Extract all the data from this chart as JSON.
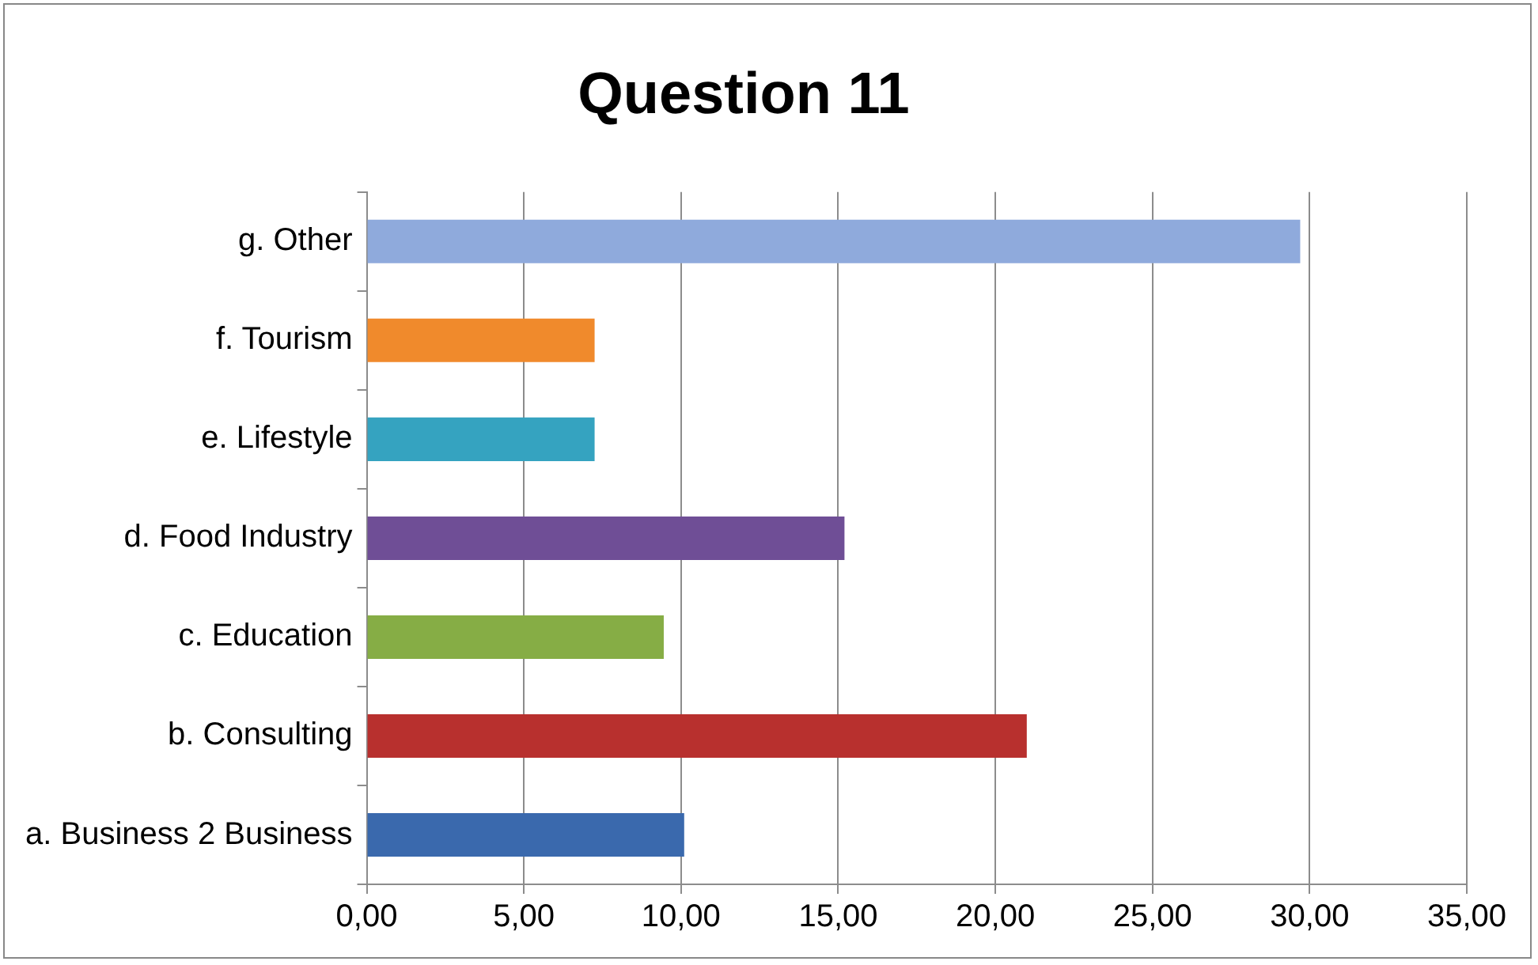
{
  "chart_data": {
    "type": "bar",
    "orientation": "horizontal",
    "title": "Question 11",
    "categories": [
      "g. Other",
      "f. Tourism",
      "e. Lifestyle",
      "d. Food Industry",
      "c. Education",
      "b. Consulting",
      "a. Business 2 Business"
    ],
    "values": [
      29.7,
      7.25,
      7.25,
      15.2,
      9.45,
      21.0,
      10.1
    ],
    "colors": [
      "#8faadc",
      "#f08a2c",
      "#35a3c0",
      "#6f4e96",
      "#86ad45",
      "#b8302e",
      "#3a69ad"
    ],
    "xlim": [
      0,
      35
    ],
    "xticks": [
      {
        "value": 0,
        "label": "0,00"
      },
      {
        "value": 5,
        "label": "5,00"
      },
      {
        "value": 10,
        "label": "10,00"
      },
      {
        "value": 15,
        "label": "15,00"
      },
      {
        "value": 20,
        "label": "20,00"
      },
      {
        "value": 25,
        "label": "25,00"
      },
      {
        "value": 30,
        "label": "30,00"
      },
      {
        "value": 35,
        "label": "35,00"
      }
    ],
    "grid": "x"
  }
}
